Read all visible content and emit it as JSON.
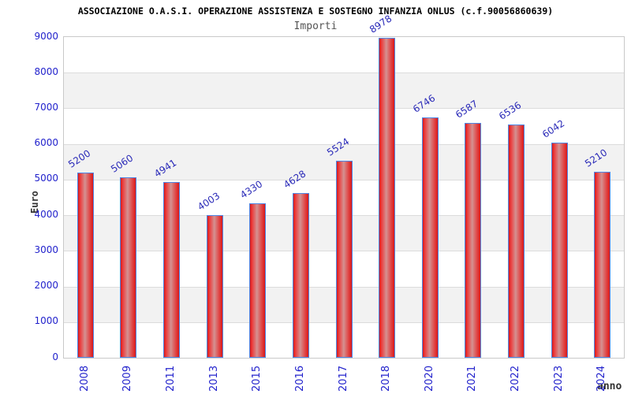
{
  "header": {
    "title": "ASSOCIAZIONE O.A.S.I. OPERAZIONE ASSISTENZA E SOSTEGNO INFANZIA ONLUS (c.f.90056860639)",
    "subtitle": "Importi"
  },
  "axes": {
    "y_label": "Euro",
    "x_label": "anno"
  },
  "chart_data": {
    "type": "bar",
    "title": "ASSOCIAZIONE O.A.S.I. OPERAZIONE ASSISTENZA E SOSTEGNO INFANZIA ONLUS (c.f.90056860639)",
    "subtitle": "Importi",
    "xlabel": "anno",
    "ylabel": "Euro",
    "categories": [
      "2008",
      "2009",
      "2011",
      "2013",
      "2015",
      "2016",
      "2017",
      "2018",
      "2020",
      "2021",
      "2022",
      "2023",
      "2024"
    ],
    "values": [
      5200,
      5060,
      4941,
      4003,
      4330,
      4628,
      5524,
      8978,
      6746,
      6587,
      6536,
      6042,
      5210
    ],
    "ylim": [
      0,
      9000
    ],
    "ytick_step": 1000,
    "yticks": [
      0,
      1000,
      2000,
      3000,
      4000,
      5000,
      6000,
      7000,
      8000,
      9000
    ],
    "grid": "horizontal-lines-with-alternating-bands",
    "legend": "none",
    "value_labels_rotation_deg": -33,
    "xtick_rotation_deg": -90,
    "colors": {
      "bar_fill_edge": "#da1818",
      "bar_fill_highlight": "#d49191",
      "bar_border": "#4d87e6",
      "tick_text": "#2222cc",
      "value_text": "#2a2ab8",
      "band": "#f2f2f2",
      "gridline": "#dcdcdc",
      "plot_border": "#c9c9c9",
      "title_text": "#000000",
      "subtitle_text": "#555555",
      "axis_title_text": "#333333",
      "background": "#ffffff"
    }
  }
}
